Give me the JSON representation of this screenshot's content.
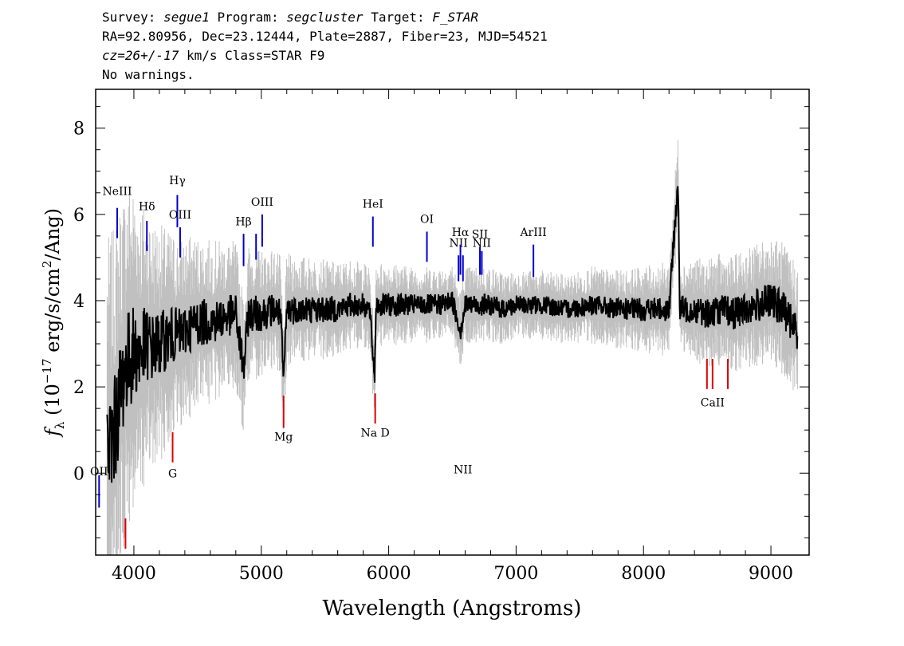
{
  "header": {
    "survey_label": "Survey:",
    "survey": "segue1",
    "program_label": "Program:",
    "program": "segcluster",
    "target_label": "Target:",
    "target": "F_STAR",
    "line2": "RA=92.80956, Dec=23.12444, Plate=2887, Fiber=23, MJD=54521",
    "cz": "cz=26+/-17",
    "cz_rest": " km/s Class=STAR F9",
    "warnings": "No warnings."
  },
  "chart_data": {
    "type": "line",
    "title": "",
    "xlabel": "Wavelength (Angstroms)",
    "ylabel": "fλ (10⁻¹⁷ erg/s/cm²/Ang)",
    "xlim": [
      3700,
      9300
    ],
    "ylim": [
      -1.9,
      8.9
    ],
    "x_ticks": [
      4000,
      5000,
      6000,
      7000,
      8000,
      9000
    ],
    "x_tick_labels": [
      "4000",
      "5000",
      "6000",
      "7000",
      "8000",
      "9000"
    ],
    "y_ticks": [
      0,
      2,
      4,
      6,
      8
    ],
    "y_tick_labels": [
      "0",
      "2",
      "4",
      "6",
      "8"
    ],
    "series": [
      {
        "role": "spectrum",
        "color": "#000000",
        "x": [
          3800,
          3850,
          3900,
          3950,
          4000,
          4050,
          4100,
          4150,
          4200,
          4250,
          4300,
          4350,
          4400,
          4450,
          4500,
          4600,
          4700,
          4800,
          4861,
          4900,
          5000,
          5100,
          5150,
          5175,
          5200,
          5300,
          5400,
          5500,
          5600,
          5700,
          5800,
          5850,
          5890,
          5900,
          6000,
          6100,
          6200,
          6300,
          6400,
          6500,
          6563,
          6600,
          6700,
          6800,
          6900,
          7000,
          7200,
          7400,
          7600,
          7800,
          8000,
          8200,
          8270,
          8285,
          8300,
          8400,
          8500,
          8600,
          8700,
          8800,
          8900,
          9000,
          9100,
          9200
        ],
        "y": [
          0.5,
          1.0,
          2.0,
          2.6,
          2.8,
          2.8,
          3.0,
          2.9,
          3.0,
          3.1,
          3.2,
          3.2,
          3.3,
          3.4,
          3.5,
          3.5,
          3.6,
          3.7,
          2.4,
          3.7,
          3.7,
          3.8,
          3.7,
          2.1,
          3.8,
          3.8,
          3.8,
          3.8,
          3.8,
          3.9,
          3.9,
          3.8,
          2.2,
          3.9,
          3.9,
          3.9,
          3.9,
          3.9,
          3.9,
          4.0,
          3.3,
          3.9,
          3.9,
          3.9,
          3.8,
          3.9,
          3.9,
          3.8,
          3.9,
          3.8,
          3.8,
          3.8,
          6.8,
          3.8,
          3.8,
          3.8,
          3.7,
          3.8,
          3.7,
          3.8,
          3.9,
          4.0,
          3.8,
          3.3
        ]
      },
      {
        "role": "error",
        "color": "#c0c0c0",
        "x": [
          3800,
          3900,
          4000,
          4100,
          4200,
          4300,
          4400,
          4500,
          4600,
          4700,
          4800,
          4900,
          5000,
          5200,
          5400,
          5600,
          5800,
          6000,
          6200,
          6400,
          6600,
          6800,
          7000,
          7200,
          7400,
          7600,
          7800,
          8000,
          8200,
          8400,
          8600,
          8800,
          9000,
          9200
        ],
        "y": [
          2.5,
          2.2,
          2.0,
          1.6,
          1.4,
          1.2,
          1.1,
          1.0,
          0.95,
          0.9,
          0.85,
          0.8,
          0.75,
          0.65,
          0.6,
          0.55,
          0.5,
          0.5,
          0.45,
          0.45,
          0.45,
          0.45,
          0.4,
          0.4,
          0.4,
          0.45,
          0.45,
          0.5,
          0.55,
          0.6,
          0.65,
          0.7,
          0.75,
          0.8
        ]
      }
    ],
    "emission_lines": [
      {
        "label": "OII",
        "x": 3727,
        "y1": -0.8,
        "y2": -0.05,
        "label_y": -0.05,
        "color": "#0000cc"
      },
      {
        "label": "NeIII",
        "x": 3869,
        "y1": 5.45,
        "y2": 6.15,
        "label_y": 6.45,
        "color": "#0000cc"
      },
      {
        "label": "Hδ",
        "x": 4102,
        "y1": 5.15,
        "y2": 5.85,
        "label_y": 6.1,
        "color": "#0000cc"
      },
      {
        "label": "Hγ",
        "x": 4341,
        "y1": 5.7,
        "y2": 6.45,
        "label_y": 6.7,
        "color": "#0000cc"
      },
      {
        "label": "OIII",
        "x": 4363,
        "y1": 5.0,
        "y2": 5.7,
        "label_y": 5.9,
        "color": "#0000cc"
      },
      {
        "label": "Hβ",
        "x": 4861,
        "y1": 4.8,
        "y2": 5.55,
        "label_y": 5.75,
        "color": "#0000cc"
      },
      {
        "label": "",
        "x": 4959,
        "y1": 4.95,
        "y2": 5.55,
        "label_y": 0,
        "color": "#0000cc"
      },
      {
        "label": "OIII",
        "x": 5007,
        "y1": 5.25,
        "y2": 6.0,
        "label_y": 6.2,
        "color": "#0000cc"
      },
      {
        "label": "HeI",
        "x": 5876,
        "y1": 5.25,
        "y2": 5.95,
        "label_y": 6.15,
        "color": "#0000cc"
      },
      {
        "label": "OI",
        "x": 6300,
        "y1": 4.9,
        "y2": 5.6,
        "label_y": 5.8,
        "color": "#0000cc"
      },
      {
        "label": "NII",
        "x": 6548,
        "y1": 4.45,
        "y2": 5.05,
        "label_y": 5.25,
        "color": "#0000cc"
      },
      {
        "label": "Hα",
        "x": 6563,
        "y1": 4.6,
        "y2": 5.3,
        "label_y": 5.5,
        "color": "#0000cc"
      },
      {
        "label": "NII",
        "x": 6583,
        "y1": 4.45,
        "y2": 5.05,
        "label_y": 0,
        "color": "#0000cc"
      },
      {
        "label": "SII",
        "x": 6716,
        "y1": 4.6,
        "y2": 5.25,
        "label_y": 5.45,
        "color": "#0000cc"
      },
      {
        "label": "NII",
        "x": 6731,
        "y1": 4.6,
        "y2": 5.15,
        "label_y": 5.25,
        "color": "#0000cc"
      },
      {
        "label": "ArIII",
        "x": 7136,
        "y1": 4.55,
        "y2": 5.3,
        "label_y": 5.5,
        "color": "#0000cc"
      }
    ],
    "absorption_lines": [
      {
        "label": "",
        "x": 3934,
        "y1": -1.75,
        "y2": -1.05,
        "label_y": 0,
        "color": "#dd0000"
      },
      {
        "label": "G",
        "x": 4304,
        "y1": 0.25,
        "y2": 0.95,
        "label_y": -0.1,
        "color": "#dd0000"
      },
      {
        "label": "Mg",
        "x": 5175,
        "y1": 1.05,
        "y2": 1.8,
        "label_y": 0.75,
        "color": "#dd0000"
      },
      {
        "label": "Na D",
        "x": 5894,
        "y1": 1.15,
        "y2": 1.85,
        "label_y": 0.85,
        "color": "#dd0000"
      },
      {
        "label": "",
        "x": 8498,
        "y1": 1.95,
        "y2": 2.65,
        "label_y": 0,
        "color": "#dd0000"
      },
      {
        "label": "CaII",
        "x": 8542,
        "y1": 1.95,
        "y2": 2.65,
        "label_y": 1.55,
        "color": "#dd0000"
      },
      {
        "label": "",
        "x": 8662,
        "y1": 1.95,
        "y2": 2.65,
        "label_y": 0,
        "color": "#dd0000"
      }
    ],
    "grid": false
  }
}
